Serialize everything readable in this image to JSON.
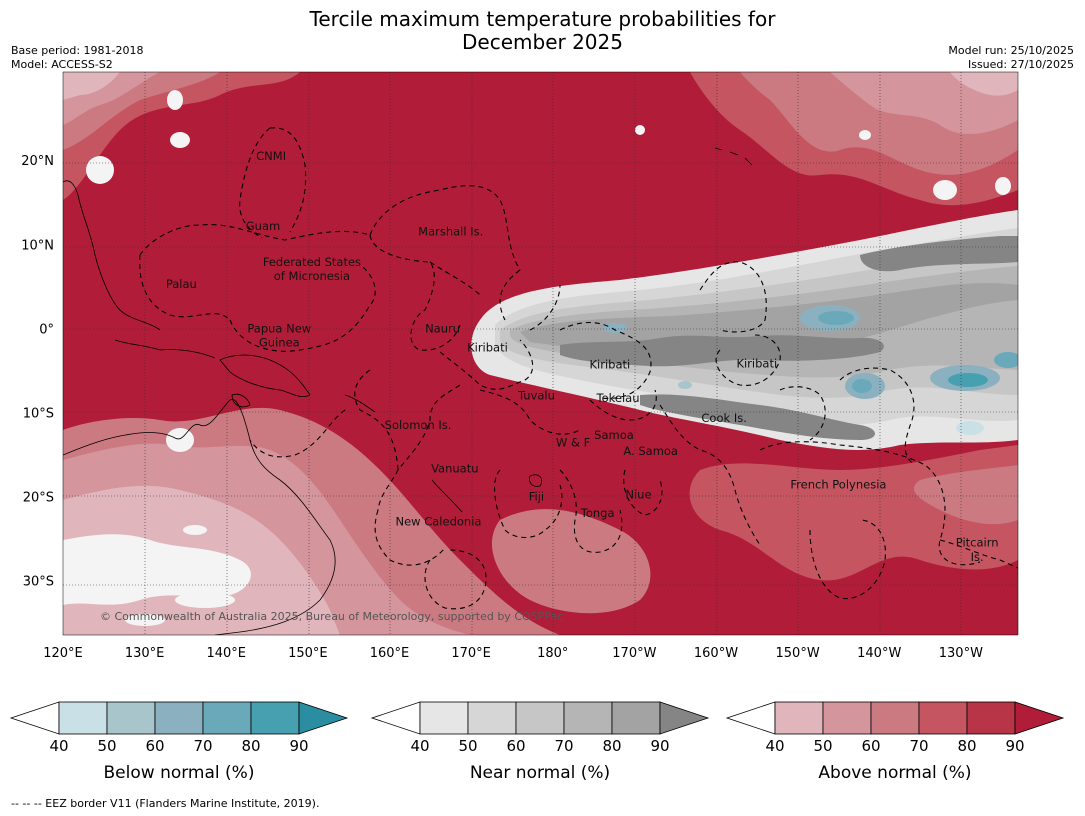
{
  "header": {
    "title_line1": "Tercile maximum temperature probabilities for",
    "title_line2": "December 2025",
    "base_period": "Base period: 1981-2018",
    "model": "Model: ACCESS-S2",
    "model_run": "Model run: 25/10/2025",
    "issued": "Issued: 27/10/2025"
  },
  "map": {
    "extent": {
      "lon_min": 120,
      "lon_max": 237,
      "lat_min": -36.5,
      "lat_max": 30.5
    },
    "lon_ticks": [
      {
        "lon": 120,
        "label": "120°E"
      },
      {
        "lon": 130,
        "label": "130°E"
      },
      {
        "lon": 140,
        "label": "140°E"
      },
      {
        "lon": 150,
        "label": "150°E"
      },
      {
        "lon": 160,
        "label": "160°E"
      },
      {
        "lon": 170,
        "label": "170°E"
      },
      {
        "lon": 180,
        "label": "180°"
      },
      {
        "lon": 190,
        "label": "170°W"
      },
      {
        "lon": 200,
        "label": "160°W"
      },
      {
        "lon": 210,
        "label": "150°W"
      },
      {
        "lon": 220,
        "label": "140°W"
      },
      {
        "lon": 230,
        "label": "130°W"
      }
    ],
    "lat_ticks": [
      {
        "lat": 20,
        "label": "20°N"
      },
      {
        "lat": 10,
        "label": "10°N"
      },
      {
        "lat": 0,
        "label": "0°"
      },
      {
        "lat": -10,
        "label": "10°S"
      },
      {
        "lat": -20,
        "label": "20°S"
      },
      {
        "lat": -30,
        "label": "30°S"
      }
    ],
    "copyright": "© Commonwealth of Australia 2025, Bureau of Meteorology, supported by COSPPac",
    "regions": [
      {
        "name": "CNMI",
        "lon": 145.5,
        "lat": 20.5
      },
      {
        "name": "Guam",
        "lon": 144.5,
        "lat": 12.2
      },
      {
        "name": "Marshall Is.",
        "lon": 167.5,
        "lat": 11.5
      },
      {
        "name": "Federated States",
        "lon": 150.5,
        "lat": 7.9
      },
      {
        "name": "of Micronesia",
        "lon": 150.5,
        "lat": 6.2
      },
      {
        "name": "Palau",
        "lon": 134.5,
        "lat": 5.3
      },
      {
        "name": "Papua New",
        "lon": 146.5,
        "lat": 0.0
      },
      {
        "name": "Guinea",
        "lon": 146.5,
        "lat": -1.7
      },
      {
        "name": "Nauru",
        "lon": 166.5,
        "lat": 0.0
      },
      {
        "name": "Kiribati",
        "lon": 172,
        "lat": -2.3
      },
      {
        "name": "Kiribati",
        "lon": 187,
        "lat": -4.3
      },
      {
        "name": "Kiribati",
        "lon": 205,
        "lat": -4.2
      },
      {
        "name": "Tuvalu",
        "lon": 178,
        "lat": -8.0
      },
      {
        "name": "Tokelau",
        "lon": 188,
        "lat": -8.3
      },
      {
        "name": "Cook Is.",
        "lon": 201,
        "lat": -10.7
      },
      {
        "name": "Solomon Is.",
        "lon": 163.5,
        "lat": -11.5
      },
      {
        "name": "Samoa",
        "lon": 187.5,
        "lat": -12.7
      },
      {
        "name": "W & F",
        "lon": 182.5,
        "lat": -13.6
      },
      {
        "name": "A. Samoa",
        "lon": 192,
        "lat": -14.6
      },
      {
        "name": "Vanuatu",
        "lon": 168,
        "lat": -16.7
      },
      {
        "name": "Fiji",
        "lon": 178,
        "lat": -20.0
      },
      {
        "name": "Niue",
        "lon": 190.5,
        "lat": -19.8
      },
      {
        "name": "Tonga",
        "lon": 185.5,
        "lat": -22.0
      },
      {
        "name": "French Polynesia",
        "lon": 215,
        "lat": -18.6
      },
      {
        "name": "New Caledonia",
        "lon": 166,
        "lat": -23.0
      },
      {
        "name": "Pitcairn",
        "lon": 232,
        "lat": -25.5
      },
      {
        "name": "Is.",
        "lon": 232,
        "lat": -27.2
      }
    ]
  },
  "legend": [
    {
      "title": "Below normal (%)",
      "colors": [
        "#c9e0e6",
        "#a7c5cb",
        "#8bb0bf",
        "#6aa9b9",
        "#47a0b0",
        "#2b8da1"
      ],
      "ticks": [
        "40",
        "50",
        "60",
        "70",
        "80",
        "90"
      ]
    },
    {
      "title": "Near normal (%)",
      "colors": [
        "#e6e6e6",
        "#d6d6d6",
        "#c6c6c6",
        "#b5b5b5",
        "#a3a3a3",
        "#858585"
      ],
      "ticks": [
        "40",
        "50",
        "60",
        "70",
        "80",
        "90"
      ]
    },
    {
      "title": "Above normal (%)",
      "colors": [
        "#e0b6bc",
        "#d4959d",
        "#cc7a82",
        "#c45561",
        "#b83447",
        "#b11c38"
      ],
      "ticks": [
        "40",
        "50",
        "60",
        "70",
        "80",
        "90"
      ]
    }
  ],
  "footnote": "--  --  -- EEZ border V11 (Flanders Marine Institute, 2019)."
}
